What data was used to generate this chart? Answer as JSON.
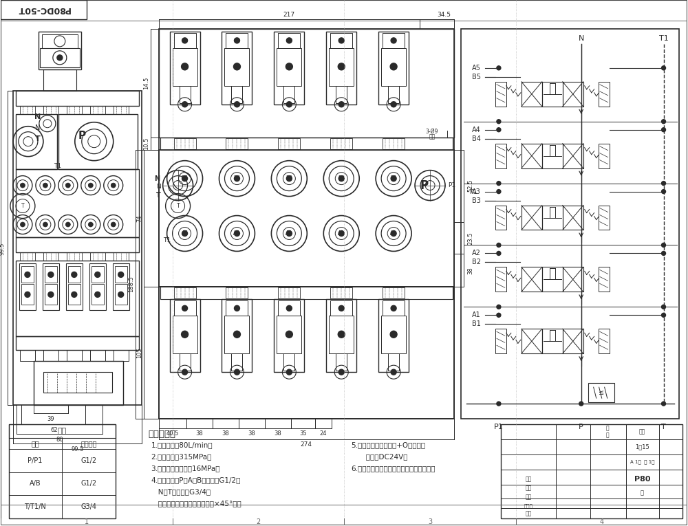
{
  "title": "P80DC-50T",
  "bg_color": "#ffffff",
  "lc": "#2a2a2a",
  "lc2": "#555555",
  "fig_width": 10.0,
  "fig_height": 7.65,
  "table_header": "阀体",
  "table_col1": "接口",
  "table_col2": "螺纹规格",
  "table_rows": [
    [
      "P/P1",
      "G1/2"
    ],
    [
      "A/B",
      "G1/2"
    ],
    [
      "T/T1/N",
      "G3/4"
    ]
  ],
  "tech_title": "技术要求：",
  "tech_lines": [
    "1.额定流量：80L/min；",
    "2.额定压力：315MPa；",
    "3.安全阀调定压力：16MPa；",
    "4.油口尺寸：P、A、B油口均为G1/2；",
    "   N、T油口均为G3/4；",
    "   油口均为平面密封，油孔口倒×45°角；"
  ],
  "tech_lines2": [
    "5.控制方式：电磁控制+O型阀杆；",
    "   电压：DC24V；",
    "6.阀体表面磷化处理，安全阀及弹筒镀镀。"
  ]
}
